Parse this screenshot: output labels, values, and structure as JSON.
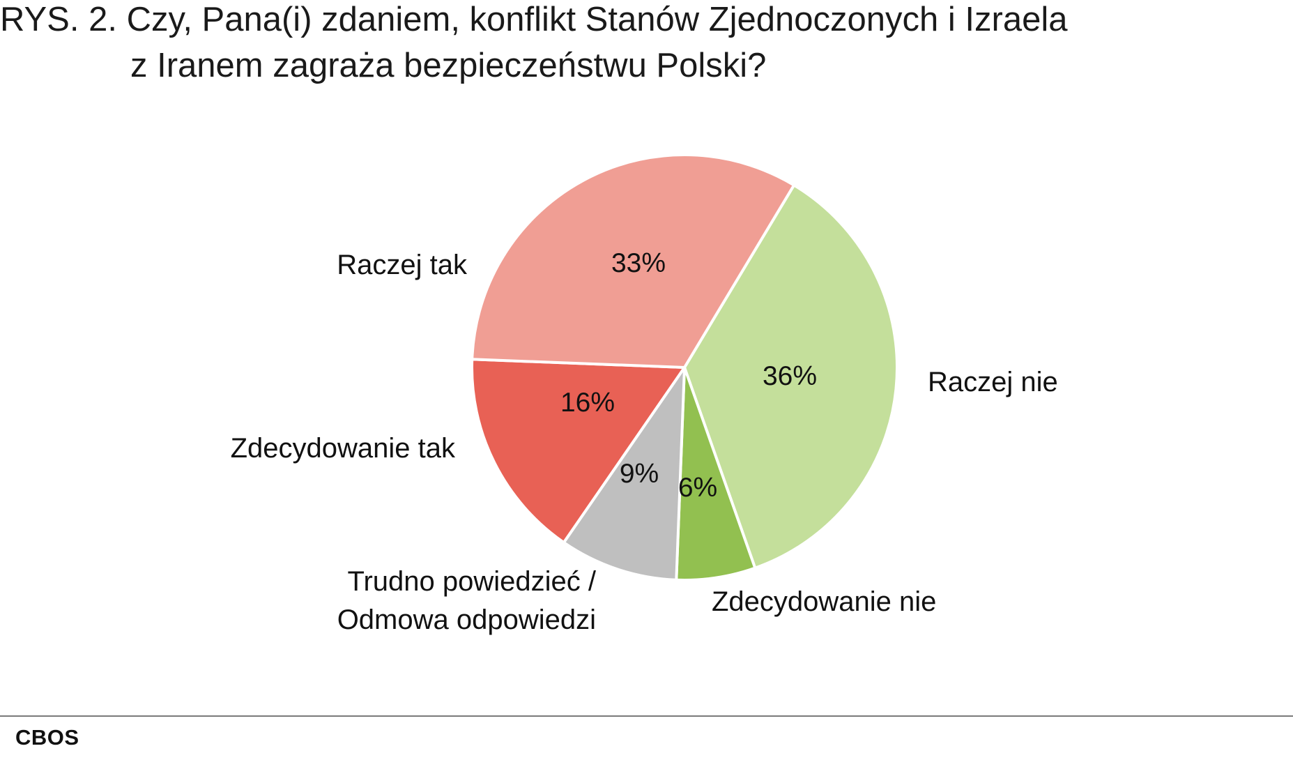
{
  "title": {
    "line1": "RYS. 2. Czy, Pana(i) zdaniem, konflikt Stanów Zjednoczonych i Izraela",
    "line2": "z Iranem zagraża bezpieczeństwu Polski?"
  },
  "source": "CBOS",
  "chart_data": {
    "type": "pie",
    "title": "RYS. 2. Czy, Pana(i) zdaniem, konflikt Stanów Zjednoczonych i Izraela z Iranem zagraża bezpieczeństwu Polski?",
    "unit": "%",
    "slices": [
      {
        "label": "Raczej nie",
        "value": 36,
        "value_label": "36%",
        "color": "#c4df9b"
      },
      {
        "label": "Zdecydowanie nie",
        "value": 6,
        "value_label": "6%",
        "color": "#92c050"
      },
      {
        "label": "Trudno powiedzieć / Odmowa odpowiedzi",
        "value": 9,
        "value_label": "9%",
        "color": "#bfbfbf"
      },
      {
        "label": "Zdecydowanie tak",
        "value": 16,
        "value_label": "16%",
        "color": "#e86155"
      },
      {
        "label": "Raczej tak",
        "value": 33,
        "value_label": "33%",
        "color": "#f09e94"
      }
    ],
    "legend": "none"
  }
}
